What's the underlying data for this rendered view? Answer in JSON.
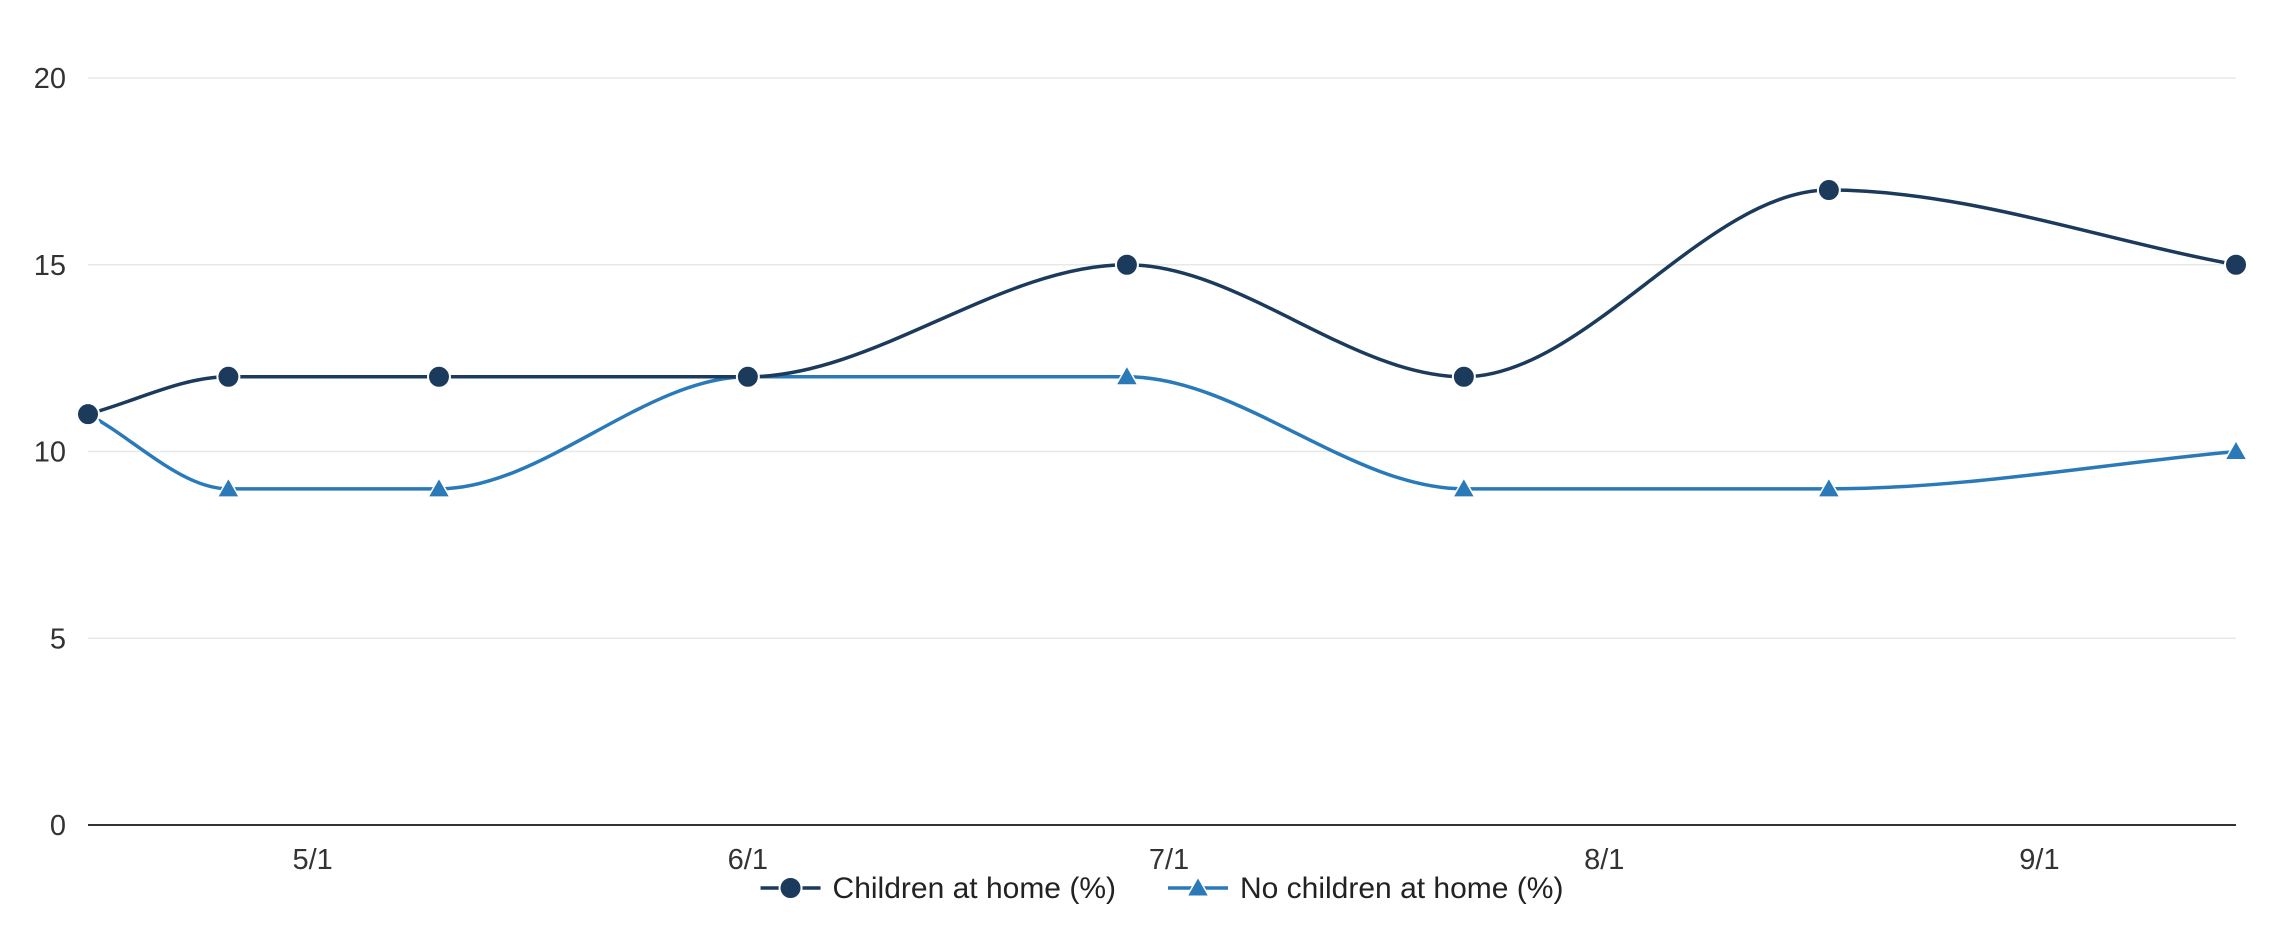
{
  "chart_data": {
    "type": "line",
    "title": "",
    "xlabel": "",
    "ylabel": "",
    "x_ticks": [
      "5/1",
      "6/1",
      "7/1",
      "8/1",
      "9/1"
    ],
    "y_ticks": [
      0,
      5,
      10,
      15,
      20
    ],
    "ylim": [
      0,
      20
    ],
    "xlim": [
      "2020-04-15",
      "2020-09-15"
    ],
    "grid": true,
    "legend_position": "bottom-center",
    "series": [
      {
        "name": "Children at home (%)",
        "color": "#1b3a5c",
        "marker": "circle",
        "x": [
          "2020-04-15",
          "2020-04-25",
          "2020-05-10",
          "2020-06-01",
          "2020-06-28",
          "2020-07-22",
          "2020-08-17",
          "2020-09-15"
        ],
        "values": [
          11,
          12,
          12,
          12,
          15,
          12,
          17,
          15
        ]
      },
      {
        "name": "No children at home (%)",
        "color": "#2a7ab9",
        "marker": "triangle",
        "x": [
          "2020-04-15",
          "2020-04-25",
          "2020-05-10",
          "2020-06-01",
          "2020-06-28",
          "2020-07-22",
          "2020-08-17",
          "2020-09-15"
        ],
        "values": [
          11,
          9,
          9,
          12,
          12,
          9,
          9,
          10
        ]
      }
    ]
  }
}
